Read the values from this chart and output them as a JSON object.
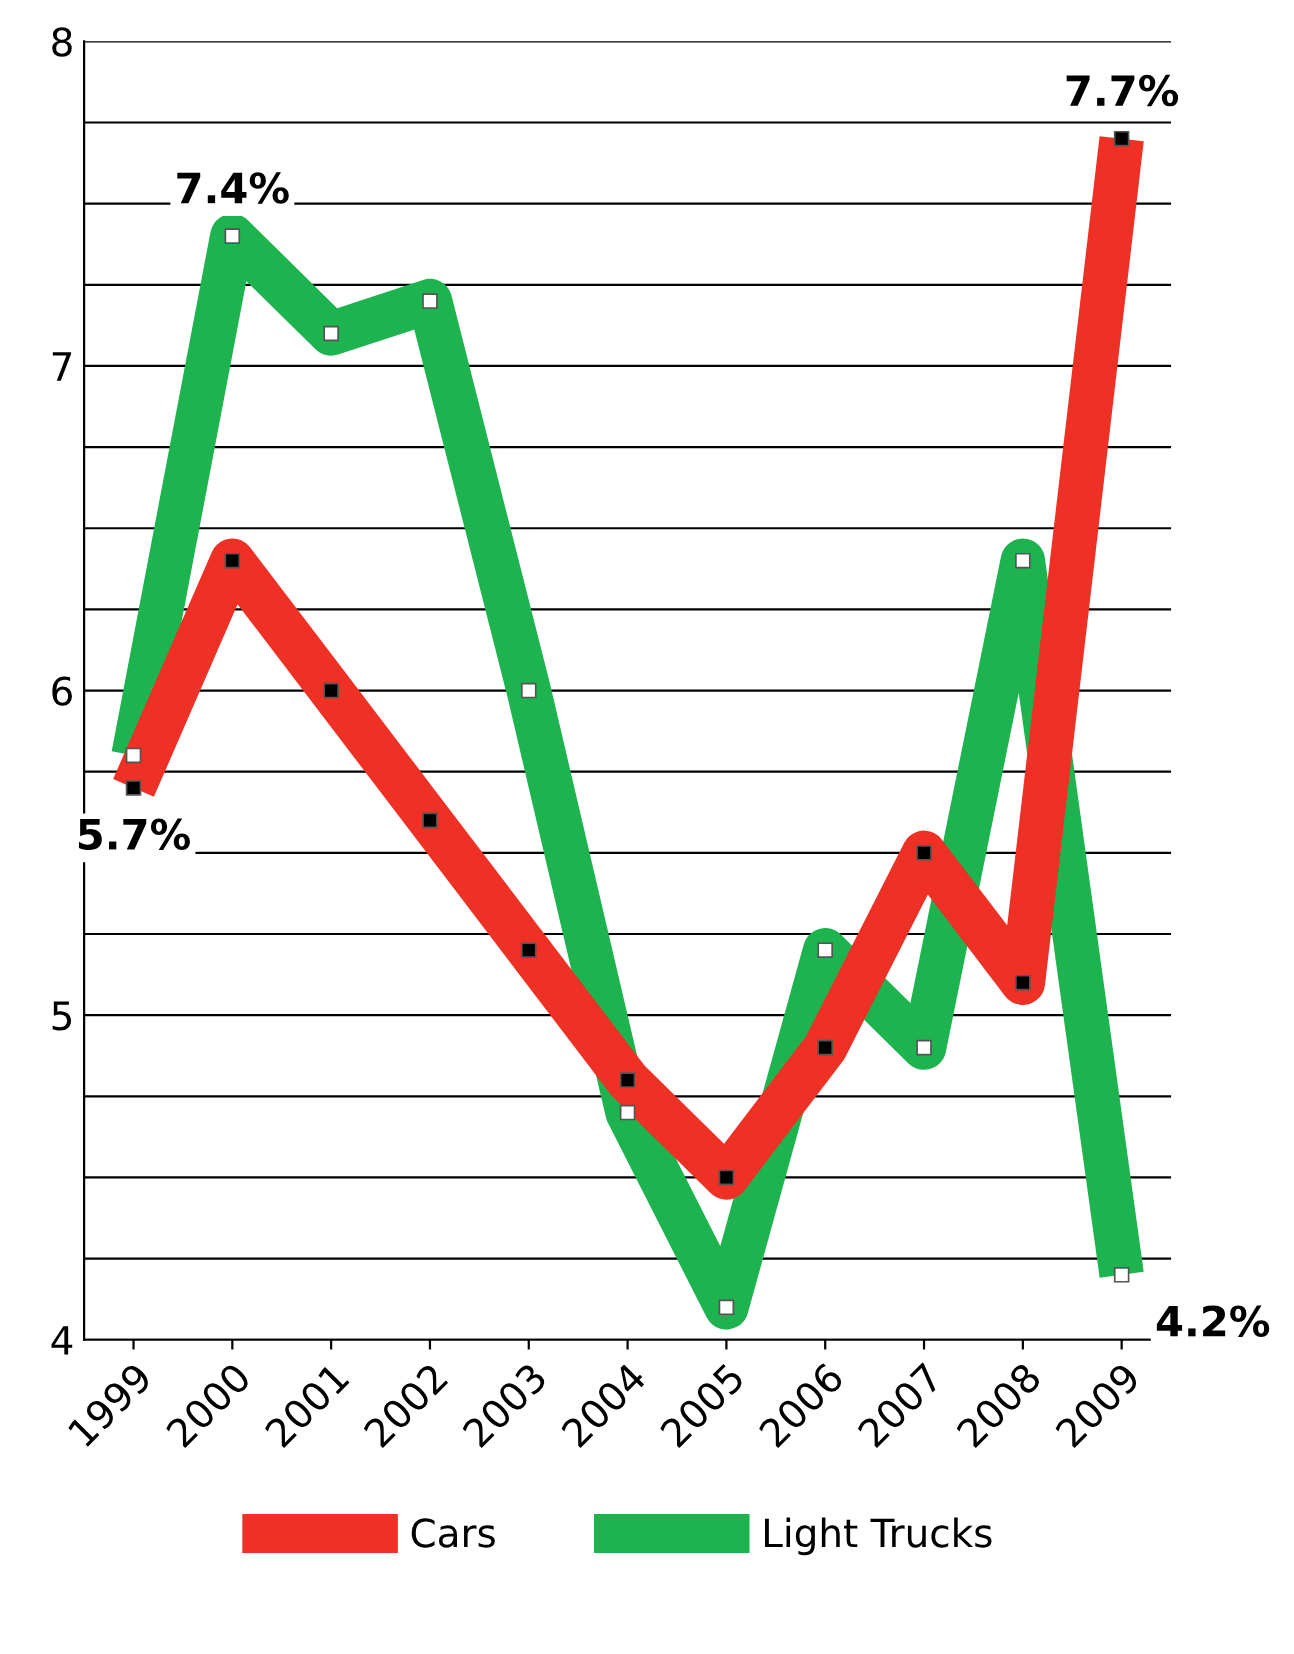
{
  "chart_data": {
    "type": "line",
    "categories": [
      "1999",
      "2000",
      "2001",
      "2002",
      "2003",
      "2004",
      "2005",
      "2006",
      "2007",
      "2008",
      "2009"
    ],
    "series": [
      {
        "name": "Cars",
        "color": "#ee3124",
        "values": [
          5.7,
          6.4,
          6.0,
          5.6,
          5.2,
          4.8,
          4.5,
          4.9,
          5.5,
          5.1,
          7.7
        ],
        "value_labels": [
          "5.7%",
          null,
          null,
          null,
          null,
          null,
          null,
          null,
          null,
          null,
          "7.7%"
        ]
      },
      {
        "name": "Light Trucks",
        "color": "#1db34f",
        "values": [
          5.8,
          7.4,
          7.1,
          7.2,
          6.0,
          4.7,
          4.1,
          5.2,
          4.9,
          6.4,
          4.2
        ],
        "value_labels": [
          null,
          "7.4%",
          null,
          null,
          null,
          null,
          null,
          null,
          null,
          null,
          "4.2%"
        ]
      }
    ],
    "ylim": [
      4,
      8
    ],
    "yticks": [
      4,
      {
        "value": 4.25,
        "label": null
      },
      {
        "value": 4.5,
        "label": null
      },
      {
        "value": 4.75,
        "label": null
      },
      5,
      {
        "value": 5.25,
        "label": null
      },
      {
        "value": 5.5,
        "label": null
      },
      {
        "value": 5.75,
        "label": null
      },
      6,
      {
        "value": 6.25,
        "label": null
      },
      {
        "value": 6.5,
        "label": null
      },
      {
        "value": 6.75,
        "label": null
      },
      7,
      {
        "value": 7.25,
        "label": null
      },
      {
        "value": 7.5,
        "label": null
      },
      {
        "value": 7.75,
        "label": null
      },
      8
    ],
    "grid": "y",
    "legend": "bottom",
    "marker": "square",
    "line_style": "solid"
  }
}
